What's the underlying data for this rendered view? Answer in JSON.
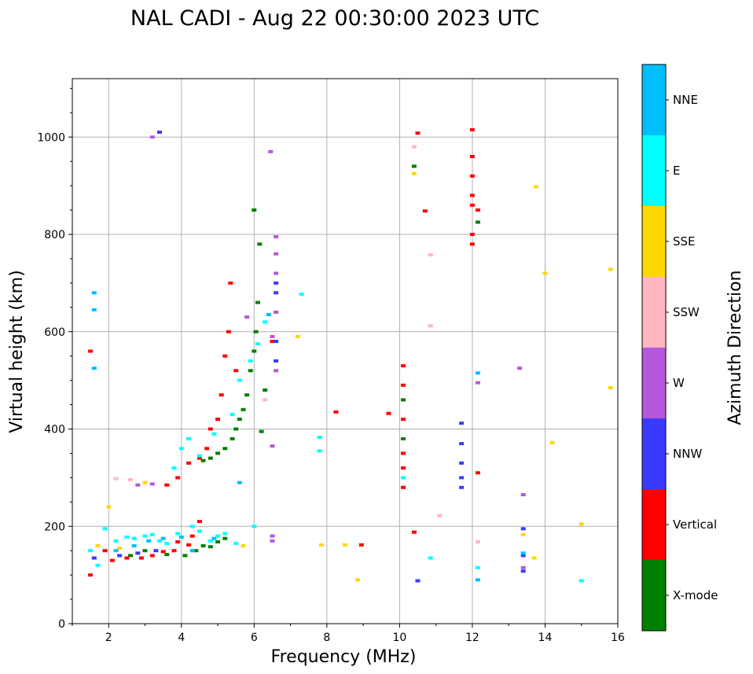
{
  "chart_data": {
    "type": "scatter",
    "title": "NAL CADI - Aug 22 00:30:00 2023 UTC",
    "xlabel": "Frequency (MHz)",
    "ylabel": "Virtual height (km)",
    "xlim": [
      1,
      16
    ],
    "ylim": [
      0,
      1120
    ],
    "xticks": [
      2,
      4,
      6,
      8,
      10,
      12,
      14,
      16
    ],
    "yticks": [
      0,
      200,
      400,
      600,
      800,
      1000
    ],
    "grid": true,
    "colorbar": {
      "label": "Azimuth Direction",
      "categories": [
        {
          "name": "X-mode",
          "color": "#008000"
        },
        {
          "name": "Vertical",
          "color": "#ff0000"
        },
        {
          "name": "NNW",
          "color": "#3a3aff"
        },
        {
          "name": "W",
          "color": "#b359d9"
        },
        {
          "name": "SSW",
          "color": "#ffb6c1"
        },
        {
          "name": "SSE",
          "color": "#ffd700"
        },
        {
          "name": "E",
          "color": "#00ffff"
        },
        {
          "name": "NNE",
          "color": "#00bfff"
        }
      ]
    },
    "series": [
      {
        "name": "X-mode",
        "points": [
          [
            2.6,
            140
          ],
          [
            3.0,
            150
          ],
          [
            3.6,
            142
          ],
          [
            4.1,
            140
          ],
          [
            4.4,
            150
          ],
          [
            4.6,
            160
          ],
          [
            4.8,
            158
          ],
          [
            5.0,
            168
          ],
          [
            5.2,
            175
          ],
          [
            4.6,
            335
          ],
          [
            4.8,
            340
          ],
          [
            5.0,
            350
          ],
          [
            5.2,
            360
          ],
          [
            5.4,
            380
          ],
          [
            5.5,
            400
          ],
          [
            5.6,
            420
          ],
          [
            5.7,
            440
          ],
          [
            5.8,
            470
          ],
          [
            5.9,
            520
          ],
          [
            6.0,
            560
          ],
          [
            6.05,
            600
          ],
          [
            6.1,
            660
          ],
          [
            6.15,
            780
          ],
          [
            6.0,
            850
          ],
          [
            6.2,
            395
          ],
          [
            6.3,
            480
          ],
          [
            10.1,
            380
          ],
          [
            10.1,
            460
          ],
          [
            10.4,
            940
          ],
          [
            12.15,
            825
          ]
        ]
      },
      {
        "name": "Vertical",
        "points": [
          [
            1.5,
            560
          ],
          [
            1.5,
            100
          ],
          [
            1.9,
            150
          ],
          [
            2.1,
            130
          ],
          [
            2.5,
            135
          ],
          [
            2.9,
            135
          ],
          [
            3.2,
            140
          ],
          [
            3.5,
            148
          ],
          [
            3.8,
            150
          ],
          [
            3.9,
            168
          ],
          [
            4.2,
            162
          ],
          [
            4.3,
            180
          ],
          [
            4.5,
            210
          ],
          [
            3.6,
            285
          ],
          [
            3.9,
            300
          ],
          [
            4.2,
            330
          ],
          [
            4.5,
            340
          ],
          [
            4.7,
            360
          ],
          [
            4.8,
            400
          ],
          [
            5.0,
            420
          ],
          [
            5.1,
            470
          ],
          [
            5.2,
            550
          ],
          [
            5.3,
            600
          ],
          [
            5.35,
            700
          ],
          [
            5.5,
            520
          ],
          [
            6.5,
            580
          ],
          [
            8.25,
            435
          ],
          [
            9.7,
            432
          ],
          [
            10.1,
            280
          ],
          [
            10.1,
            320
          ],
          [
            10.1,
            350
          ],
          [
            10.1,
            420
          ],
          [
            10.1,
            490
          ],
          [
            10.1,
            530
          ],
          [
            10.4,
            188
          ],
          [
            10.5,
            1008
          ],
          [
            10.7,
            848
          ],
          [
            12.0,
            780
          ],
          [
            12.0,
            800
          ],
          [
            12.0,
            860
          ],
          [
            12.0,
            880
          ],
          [
            12.0,
            920
          ],
          [
            12.0,
            960
          ],
          [
            12.0,
            1015
          ],
          [
            12.15,
            850
          ],
          [
            12.15,
            310
          ],
          [
            8.95,
            162
          ]
        ]
      },
      {
        "name": "NNW",
        "points": [
          [
            1.6,
            135
          ],
          [
            2.3,
            140
          ],
          [
            2.8,
            145
          ],
          [
            3.3,
            150
          ],
          [
            3.4,
            1010
          ],
          [
            6.6,
            540
          ],
          [
            6.6,
            580
          ],
          [
            6.6,
            680
          ],
          [
            6.6,
            700
          ],
          [
            10.5,
            88
          ],
          [
            11.7,
            280
          ],
          [
            11.7,
            300
          ],
          [
            11.7,
            330
          ],
          [
            11.7,
            370
          ],
          [
            11.7,
            412
          ],
          [
            13.4,
            108
          ],
          [
            13.4,
            140
          ],
          [
            13.4,
            195
          ]
        ]
      },
      {
        "name": "W",
        "points": [
          [
            2.8,
            285
          ],
          [
            3.2,
            287
          ],
          [
            3.2,
            1000
          ],
          [
            5.8,
            630
          ],
          [
            6.45,
            970
          ],
          [
            6.5,
            590
          ],
          [
            6.5,
            365
          ],
          [
            6.5,
            180
          ],
          [
            6.5,
            170
          ],
          [
            6.6,
            520
          ],
          [
            6.6,
            640
          ],
          [
            6.6,
            720
          ],
          [
            6.6,
            760
          ],
          [
            6.6,
            795
          ],
          [
            12.15,
            495
          ],
          [
            13.3,
            525
          ],
          [
            13.4,
            115
          ],
          [
            13.4,
            265
          ]
        ]
      },
      {
        "name": "SSW",
        "points": [
          [
            2.2,
            298
          ],
          [
            2.6,
            296
          ],
          [
            6.3,
            460
          ],
          [
            10.4,
            980
          ],
          [
            10.85,
            612
          ],
          [
            10.85,
            758
          ],
          [
            11.1,
            222
          ],
          [
            12.15,
            168
          ]
        ]
      },
      {
        "name": "SSE",
        "points": [
          [
            1.7,
            160
          ],
          [
            2.0,
            240
          ],
          [
            2.3,
            155
          ],
          [
            3.0,
            290
          ],
          [
            5.7,
            160
          ],
          [
            7.2,
            590
          ],
          [
            7.85,
            162
          ],
          [
            8.5,
            162
          ],
          [
            8.85,
            90
          ],
          [
            10.4,
            925
          ],
          [
            13.4,
            183
          ],
          [
            13.7,
            135
          ],
          [
            13.75,
            898
          ],
          [
            14.0,
            720
          ],
          [
            14.2,
            372
          ],
          [
            15.0,
            205
          ],
          [
            15.8,
            728
          ],
          [
            15.8,
            485
          ]
        ]
      },
      {
        "name": "E",
        "points": [
          [
            1.5,
            150
          ],
          [
            1.7,
            120
          ],
          [
            1.9,
            195
          ],
          [
            2.2,
            170
          ],
          [
            2.5,
            178
          ],
          [
            2.7,
            175
          ],
          [
            3.0,
            180
          ],
          [
            3.2,
            183
          ],
          [
            3.4,
            170
          ],
          [
            3.6,
            165
          ],
          [
            3.9,
            185
          ],
          [
            4.3,
            200
          ],
          [
            4.5,
            190
          ],
          [
            4.8,
            170
          ],
          [
            5.0,
            180
          ],
          [
            5.2,
            185
          ],
          [
            5.5,
            165
          ],
          [
            6.0,
            200
          ],
          [
            3.8,
            320
          ],
          [
            4.0,
            360
          ],
          [
            4.2,
            380
          ],
          [
            4.5,
            345
          ],
          [
            4.9,
            390
          ],
          [
            5.4,
            430
          ],
          [
            5.6,
            500
          ],
          [
            5.9,
            540
          ],
          [
            6.1,
            575
          ],
          [
            6.3,
            620
          ],
          [
            7.3,
            677
          ],
          [
            7.8,
            355
          ],
          [
            7.8,
            383
          ],
          [
            10.1,
            300
          ],
          [
            10.85,
            135
          ],
          [
            12.15,
            115
          ],
          [
            15.0,
            88
          ]
        ]
      },
      {
        "name": "NNE",
        "points": [
          [
            1.6,
            680
          ],
          [
            1.6,
            525
          ],
          [
            1.6,
            645
          ],
          [
            2.2,
            150
          ],
          [
            2.7,
            160
          ],
          [
            3.1,
            170
          ],
          [
            3.5,
            175
          ],
          [
            4.0,
            178
          ],
          [
            4.3,
            150
          ],
          [
            4.9,
            175
          ],
          [
            5.6,
            290
          ],
          [
            6.4,
            635
          ],
          [
            12.15,
            515
          ],
          [
            12.15,
            90
          ],
          [
            13.4,
            145
          ]
        ]
      }
    ]
  }
}
